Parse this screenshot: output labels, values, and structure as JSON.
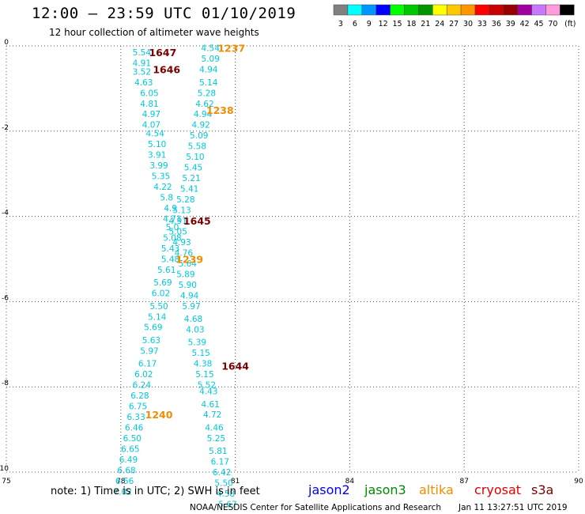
{
  "title": "12:00 – 23:59 UTC 01/10/2019",
  "subtitle": "12 hour collection of altimeter wave heights",
  "footer": {
    "note": "note: 1) Time is in UTC; 2) SWH is in feet",
    "credit": "NOAA/NESDIS Center for Satellite Applications and Research",
    "timestamp": "Jan 11 13:27:51 UTC 2019"
  },
  "colors": {
    "jason2": "#0000ff",
    "jason3": "#008a00",
    "altika": "#f08c00",
    "cryosat": "#e00000",
    "s3a": "#7a0000",
    "swh_label": "#00c8d8"
  },
  "chart_data": {
    "type": "scatter",
    "xlim": [
      75,
      90
    ],
    "ylim": [
      -10,
      0
    ],
    "x_ticks": [
      "75",
      "78",
      "81",
      "84",
      "87",
      "90"
    ],
    "y_ticks": [
      "0",
      "-2",
      "-4",
      "-6",
      "-8",
      "-10"
    ],
    "grid": true,
    "legend_scale": {
      "colors": [
        "#808080",
        "#00ffff",
        "#0096ff",
        "#0000ff",
        "#00ff00",
        "#00c800",
        "#009600",
        "#ffff00",
        "#ffc800",
        "#ff9600",
        "#ff0000",
        "#c80000",
        "#960000",
        "#a000a0",
        "#c878ff",
        "#ff9bdc",
        "#000000"
      ],
      "labels": [
        "3",
        "6",
        "9",
        "12",
        "15",
        "18",
        "21",
        "24",
        "27",
        "30",
        "33",
        "36",
        "39",
        "42",
        "45",
        "70",
        "(ft)"
      ]
    },
    "satellite_legend": [
      {
        "name": "jason2",
        "color": "#0000ff"
      },
      {
        "name": "jason3",
        "color": "#008a00"
      },
      {
        "name": "altika",
        "color": "#f08c00"
      },
      {
        "name": "cryosat",
        "color": "#e00000"
      },
      {
        "name": "s3a",
        "color": "#7a0000"
      }
    ],
    "time_labels": [
      {
        "label": "1237",
        "sat": "altika",
        "x": 80.9,
        "y": -0.05
      },
      {
        "label": "1647",
        "sat": "s3a",
        "x": 79.1,
        "y": -0.15
      },
      {
        "label": "1646",
        "sat": "s3a",
        "x": 79.2,
        "y": -0.55
      },
      {
        "label": "1238",
        "sat": "altika",
        "x": 80.6,
        "y": -1.5
      },
      {
        "label": "1645",
        "sat": "s3a",
        "x": 80.0,
        "y": -4.1
      },
      {
        "label": "1239",
        "sat": "altika",
        "x": 79.8,
        "y": -5.0
      },
      {
        "label": "1644",
        "sat": "s3a",
        "x": 81.0,
        "y": -7.5
      },
      {
        "label": "1240",
        "sat": "altika",
        "x": 79.0,
        "y": -8.65
      }
    ],
    "swh_points": [
      {
        "x": 78.55,
        "y": -0.15,
        "v": "5.54"
      },
      {
        "x": 78.55,
        "y": -0.4,
        "v": "4.91"
      },
      {
        "x": 78.55,
        "y": -0.6,
        "v": "3.52"
      },
      {
        "x": 78.6,
        "y": -0.85,
        "v": "4.63"
      },
      {
        "x": 78.75,
        "y": -1.1,
        "v": "6.05"
      },
      {
        "x": 78.75,
        "y": -1.35,
        "v": "4.81"
      },
      {
        "x": 78.8,
        "y": -1.6,
        "v": "4.97"
      },
      {
        "x": 78.8,
        "y": -1.85,
        "v": "4.07"
      },
      {
        "x": 78.9,
        "y": -2.05,
        "v": "4.54"
      },
      {
        "x": 78.95,
        "y": -2.3,
        "v": "5.10"
      },
      {
        "x": 78.95,
        "y": -2.55,
        "v": "3.91"
      },
      {
        "x": 79.0,
        "y": -2.8,
        "v": "3.99"
      },
      {
        "x": 79.05,
        "y": -3.05,
        "v": "5.35"
      },
      {
        "x": 79.1,
        "y": -3.3,
        "v": "4.22"
      },
      {
        "x": 79.2,
        "y": -3.55,
        "v": "5.8"
      },
      {
        "x": 79.3,
        "y": -3.8,
        "v": "4.9"
      },
      {
        "x": 79.35,
        "y": -4.05,
        "v": "4.71"
      },
      {
        "x": 79.35,
        "y": -4.25,
        "v": "5.0"
      },
      {
        "x": 79.35,
        "y": -4.5,
        "v": "5.08"
      },
      {
        "x": 79.3,
        "y": -4.75,
        "v": "5.43"
      },
      {
        "x": 79.3,
        "y": -5.0,
        "v": "5.48"
      },
      {
        "x": 79.2,
        "y": -5.25,
        "v": "5.61"
      },
      {
        "x": 79.1,
        "y": -5.55,
        "v": "5.69"
      },
      {
        "x": 79.05,
        "y": -5.8,
        "v": "6.02"
      },
      {
        "x": 79.0,
        "y": -6.1,
        "v": "5.50"
      },
      {
        "x": 78.95,
        "y": -6.35,
        "v": "5.14"
      },
      {
        "x": 78.85,
        "y": -6.6,
        "v": "5.69"
      },
      {
        "x": 78.8,
        "y": -6.9,
        "v": "5.63"
      },
      {
        "x": 78.75,
        "y": -7.15,
        "v": "5.97"
      },
      {
        "x": 78.7,
        "y": -7.45,
        "v": "6.17"
      },
      {
        "x": 78.6,
        "y": -7.7,
        "v": "6.02"
      },
      {
        "x": 78.55,
        "y": -7.95,
        "v": "6.24"
      },
      {
        "x": 78.5,
        "y": -8.2,
        "v": "6.28"
      },
      {
        "x": 78.45,
        "y": -8.45,
        "v": "6.75"
      },
      {
        "x": 78.4,
        "y": -8.7,
        "v": "6.33"
      },
      {
        "x": 78.35,
        "y": -8.95,
        "v": "6.46"
      },
      {
        "x": 78.3,
        "y": -9.2,
        "v": "6.50"
      },
      {
        "x": 78.25,
        "y": -9.45,
        "v": "6.65"
      },
      {
        "x": 78.2,
        "y": -9.7,
        "v": "6.49"
      },
      {
        "x": 78.15,
        "y": -9.95,
        "v": "6.68"
      },
      {
        "x": 78.1,
        "y": -10.2,
        "v": "6.56"
      },
      {
        "x": 78.05,
        "y": -10.45,
        "v": "7.02"
      },
      {
        "x": 80.35,
        "y": -0.05,
        "v": "4.54"
      },
      {
        "x": 80.35,
        "y": -0.3,
        "v": "5.09"
      },
      {
        "x": 80.3,
        "y": -0.55,
        "v": "4.94"
      },
      {
        "x": 80.3,
        "y": -0.85,
        "v": "5.14"
      },
      {
        "x": 80.25,
        "y": -1.1,
        "v": "5.28"
      },
      {
        "x": 80.2,
        "y": -1.35,
        "v": "4.62"
      },
      {
        "x": 80.15,
        "y": -1.6,
        "v": "4.94"
      },
      {
        "x": 80.1,
        "y": -1.85,
        "v": "4.92"
      },
      {
        "x": 80.05,
        "y": -2.1,
        "v": "5.09"
      },
      {
        "x": 80.0,
        "y": -2.35,
        "v": "5.58"
      },
      {
        "x": 79.95,
        "y": -2.6,
        "v": "5.10"
      },
      {
        "x": 79.9,
        "y": -2.85,
        "v": "5.45"
      },
      {
        "x": 79.85,
        "y": -3.1,
        "v": "5.21"
      },
      {
        "x": 79.8,
        "y": -3.35,
        "v": "5.41"
      },
      {
        "x": 79.7,
        "y": -3.6,
        "v": "5.28"
      },
      {
        "x": 79.6,
        "y": -3.85,
        "v": "5.13"
      },
      {
        "x": 79.5,
        "y": -4.1,
        "v": "4.91"
      },
      {
        "x": 79.5,
        "y": -4.35,
        "v": "5.05"
      },
      {
        "x": 79.6,
        "y": -4.6,
        "v": "4.93"
      },
      {
        "x": 79.65,
        "y": -4.85,
        "v": "4.76"
      },
      {
        "x": 79.75,
        "y": -5.1,
        "v": "5.64"
      },
      {
        "x": 79.7,
        "y": -5.35,
        "v": "5.89"
      },
      {
        "x": 79.75,
        "y": -5.6,
        "v": "5.90"
      },
      {
        "x": 79.8,
        "y": -5.85,
        "v": "4.94"
      },
      {
        "x": 79.85,
        "y": -6.1,
        "v": "5.97"
      },
      {
        "x": 79.9,
        "y": -6.4,
        "v": "4.68"
      },
      {
        "x": 79.95,
        "y": -6.65,
        "v": "4.03"
      },
      {
        "x": 80.0,
        "y": -6.95,
        "v": "5.39"
      },
      {
        "x": 80.1,
        "y": -7.2,
        "v": "5.15"
      },
      {
        "x": 80.15,
        "y": -7.45,
        "v": "4.38"
      },
      {
        "x": 80.2,
        "y": -7.7,
        "v": "5.15"
      },
      {
        "x": 80.25,
        "y": -7.95,
        "v": "5.52"
      },
      {
        "x": 80.3,
        "y": -8.1,
        "v": "4.43"
      },
      {
        "x": 80.35,
        "y": -8.4,
        "v": "4.61"
      },
      {
        "x": 80.4,
        "y": -8.65,
        "v": "4.72"
      },
      {
        "x": 80.45,
        "y": -8.95,
        "v": "4.46"
      },
      {
        "x": 80.5,
        "y": -9.2,
        "v": "5.25"
      },
      {
        "x": 80.55,
        "y": -9.5,
        "v": "5.81"
      },
      {
        "x": 80.6,
        "y": -9.75,
        "v": "6.17"
      },
      {
        "x": 80.65,
        "y": -10.0,
        "v": "6.42"
      },
      {
        "x": 80.7,
        "y": -10.25,
        "v": "5.50"
      },
      {
        "x": 80.75,
        "y": -10.5,
        "v": "4.58"
      },
      {
        "x": 80.8,
        "y": -10.75,
        "v": "5.67"
      }
    ]
  }
}
